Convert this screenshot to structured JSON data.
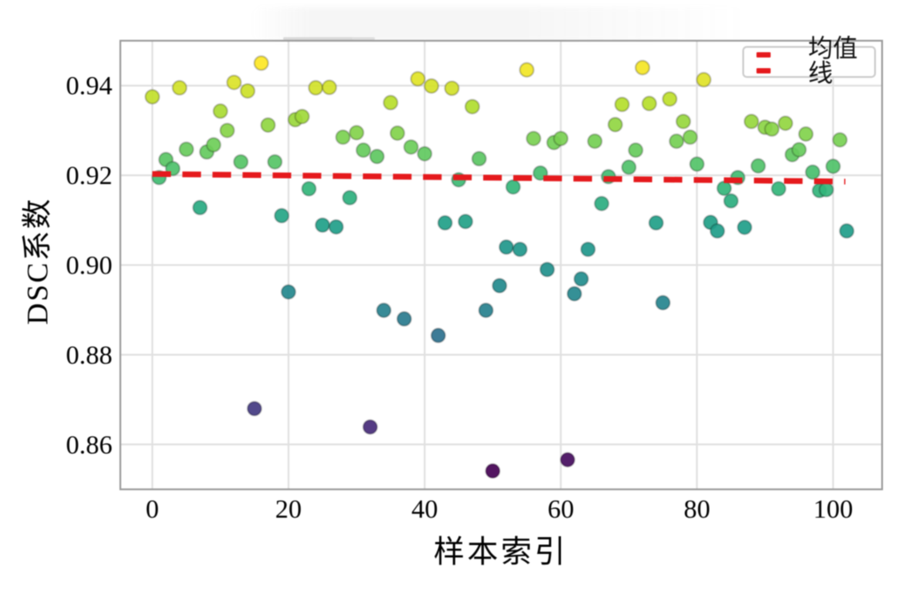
{
  "figure": {
    "xlabel": "样本索引",
    "ylabel": "DSC系数",
    "background": "#ffffff",
    "border_color": "#9b9b9b",
    "grid_color": "#e0e0e0",
    "tick_color": "#000000"
  },
  "legend": {
    "label": "均值线",
    "line_color": "#e51a1d",
    "line_style": "dashed",
    "position": "upper right"
  },
  "chart_data": {
    "type": "scatter",
    "title": "",
    "xlabel": "样本索引",
    "ylabel": "DSC系数",
    "xlim": [
      -4.7,
      107.2
    ],
    "ylim": [
      0.85,
      0.95
    ],
    "grid": true,
    "xtick_values": [
      0,
      20,
      40,
      60,
      80,
      100
    ],
    "xtick_labels": [
      "0",
      "20",
      "40",
      "60",
      "80",
      "100"
    ],
    "ytick_values": [
      0.86,
      0.88,
      0.9,
      0.92,
      0.94
    ],
    "ytick_labels": [
      "0.86",
      "0.88",
      "0.90",
      "0.92",
      "0.94"
    ],
    "colormap": "viridis",
    "color_by": "y",
    "color_domain": [
      0.854,
      0.945
    ],
    "point_radius": 7.8,
    "legend_position": "upper right",
    "mean_line": {
      "label": "均值线",
      "value": 0.9195,
      "color": "#e51a1d",
      "style": "dashed",
      "x_start": 0,
      "x_end": 101.8,
      "value_at_left": 0.9203,
      "value_at_right": 0.9186
    },
    "points": [
      [
        0,
        0.9375
      ],
      [
        1,
        0.9195
      ],
      [
        2,
        0.9235
      ],
      [
        3,
        0.9215
      ],
      [
        4,
        0.9395
      ],
      [
        5,
        0.9258
      ],
      [
        7,
        0.9128
      ],
      [
        8,
        0.9252
      ],
      [
        9,
        0.9268
      ],
      [
        10,
        0.9343
      ],
      [
        11,
        0.93
      ],
      [
        12,
        0.9407
      ],
      [
        13,
        0.923
      ],
      [
        14,
        0.9388
      ],
      [
        15,
        0.868
      ],
      [
        16,
        0.945
      ],
      [
        17,
        0.9312
      ],
      [
        18,
        0.923
      ],
      [
        19,
        0.911
      ],
      [
        20,
        0.894
      ],
      [
        21,
        0.9324
      ],
      [
        22,
        0.9331
      ],
      [
        23,
        0.917
      ],
      [
        24,
        0.9395
      ],
      [
        25,
        0.9089
      ],
      [
        26,
        0.9396
      ],
      [
        27,
        0.9085
      ],
      [
        28,
        0.9285
      ],
      [
        29,
        0.915
      ],
      [
        30,
        0.9295
      ],
      [
        31,
        0.9256
      ],
      [
        32,
        0.8639
      ],
      [
        33,
        0.9242
      ],
      [
        34,
        0.8899
      ],
      [
        35,
        0.9362
      ],
      [
        36,
        0.9294
      ],
      [
        37,
        0.888
      ],
      [
        38,
        0.9263
      ],
      [
        39,
        0.9415
      ],
      [
        40,
        0.9248
      ],
      [
        41,
        0.9399
      ],
      [
        42,
        0.8843
      ],
      [
        43,
        0.9094
      ],
      [
        44,
        0.9394
      ],
      [
        45,
        0.919
      ],
      [
        46,
        0.9097
      ],
      [
        47,
        0.9353
      ],
      [
        48,
        0.9237
      ],
      [
        49,
        0.8899
      ],
      [
        50,
        0.8541
      ],
      [
        51,
        0.8954
      ],
      [
        52,
        0.904
      ],
      [
        53,
        0.9174
      ],
      [
        54,
        0.9035
      ],
      [
        55,
        0.9435
      ],
      [
        56,
        0.9282
      ],
      [
        57,
        0.9205
      ],
      [
        58,
        0.899
      ],
      [
        59,
        0.9273
      ],
      [
        60,
        0.9282
      ],
      [
        61,
        0.8566
      ],
      [
        62,
        0.8936
      ],
      [
        63,
        0.8969
      ],
      [
        64,
        0.9035
      ],
      [
        65,
        0.9276
      ],
      [
        66,
        0.9137
      ],
      [
        67,
        0.9197
      ],
      [
        68,
        0.9313
      ],
      [
        69,
        0.9358
      ],
      [
        70,
        0.9218
      ],
      [
        71,
        0.9256
      ],
      [
        72,
        0.944
      ],
      [
        73,
        0.936
      ],
      [
        74,
        0.9094
      ],
      [
        75,
        0.8916
      ],
      [
        76,
        0.937
      ],
      [
        77,
        0.9276
      ],
      [
        78,
        0.932
      ],
      [
        79,
        0.9285
      ],
      [
        80,
        0.9225
      ],
      [
        81,
        0.9413
      ],
      [
        82,
        0.9095
      ],
      [
        83,
        0.9076
      ],
      [
        84,
        0.9171
      ],
      [
        85,
        0.9143
      ],
      [
        86,
        0.9195
      ],
      [
        87,
        0.9084
      ],
      [
        88,
        0.932
      ],
      [
        89,
        0.9221
      ],
      [
        90,
        0.9307
      ],
      [
        91,
        0.9303
      ],
      [
        92,
        0.917
      ],
      [
        93,
        0.9316
      ],
      [
        94,
        0.9246
      ],
      [
        95,
        0.9257
      ],
      [
        96,
        0.9292
      ],
      [
        97,
        0.9207
      ],
      [
        98,
        0.9166
      ],
      [
        99,
        0.9168
      ],
      [
        100,
        0.922
      ],
      [
        101,
        0.9279
      ],
      [
        102,
        0.9076
      ]
    ]
  }
}
